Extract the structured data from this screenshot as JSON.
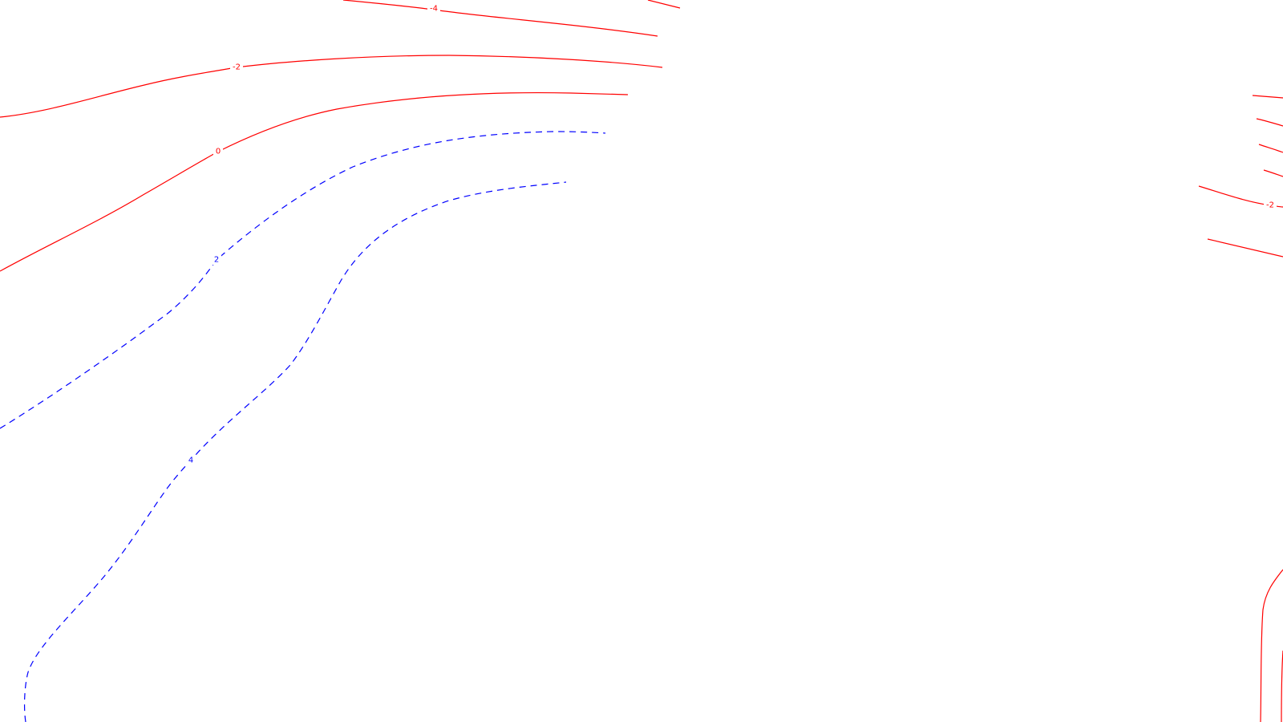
{
  "map": {
    "colors": {
      "negative_or_zero": "#ff0000",
      "positive": "#0000ff",
      "background": "#ffffff"
    },
    "line_styles": {
      "negative_or_zero": "solid",
      "positive": "dashed"
    },
    "contour_labels": [
      {
        "id": "red-top-1",
        "text": "-4"
      },
      {
        "id": "red-top-2",
        "text": "-2"
      },
      {
        "id": "red-top-3",
        "text": "0"
      },
      {
        "id": "blue-left-1",
        "text": "2"
      },
      {
        "id": "blue-left-2",
        "text": "4"
      },
      {
        "id": "red-right-1",
        "text": "-2"
      }
    ]
  }
}
